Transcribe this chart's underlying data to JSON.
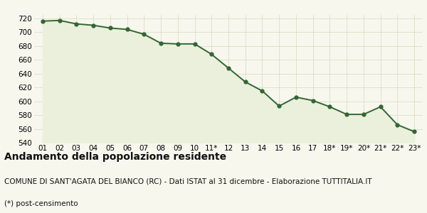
{
  "x_labels": [
    "01",
    "02",
    "03",
    "04",
    "05",
    "06",
    "07",
    "08",
    "09",
    "10",
    "11*",
    "12",
    "13",
    "14",
    "15",
    "16",
    "17",
    "18*",
    "19*",
    "20*",
    "21*",
    "22*",
    "23*"
  ],
  "y_values": [
    716,
    717,
    712,
    710,
    706,
    704,
    697,
    684,
    683,
    683,
    668,
    648,
    628,
    615,
    593,
    606,
    601,
    592,
    581,
    581,
    592,
    566,
    556
  ],
  "line_color": "#336633",
  "fill_color": "#eaf0dc",
  "marker_color": "#336633",
  "background_color": "#f7f7ee",
  "grid_color": "#d8d8c0",
  "title": "Andamento della popolazione residente",
  "subtitle": "COMUNE DI SANT'AGATA DEL BIANCO (RC) - Dati ISTAT al 31 dicembre - Elaborazione TUTTITALIA.IT",
  "footnote": "(*) post-censimento",
  "ylim": [
    540,
    725
  ],
  "yticks": [
    540,
    560,
    580,
    600,
    620,
    640,
    660,
    680,
    700,
    720
  ],
  "title_fontsize": 10,
  "subtitle_fontsize": 7.5,
  "footnote_fontsize": 7.5
}
